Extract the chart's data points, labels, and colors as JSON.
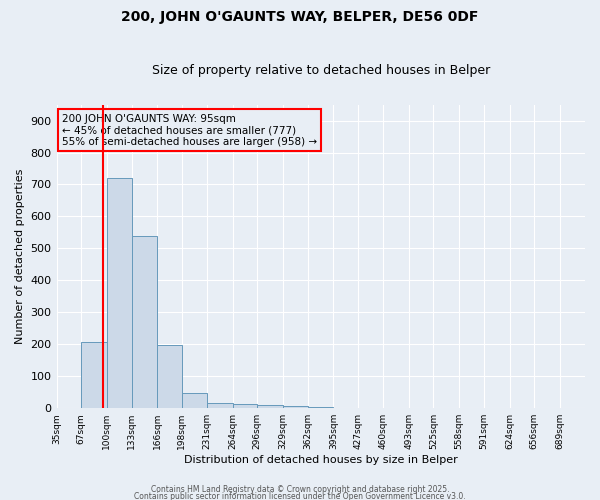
{
  "title1": "200, JOHN O'GAUNTS WAY, BELPER, DE56 0DF",
  "title2": "Size of property relative to detached houses in Belper",
  "xlabel": "Distribution of detached houses by size in Belper",
  "ylabel": "Number of detached properties",
  "bin_labels": [
    "35sqm",
    "67sqm",
    "100sqm",
    "133sqm",
    "166sqm",
    "198sqm",
    "231sqm",
    "264sqm",
    "296sqm",
    "329sqm",
    "362sqm",
    "395sqm",
    "427sqm",
    "460sqm",
    "493sqm",
    "525sqm",
    "558sqm",
    "591sqm",
    "624sqm",
    "656sqm",
    "689sqm"
  ],
  "bin_edges": [
    35,
    67,
    100,
    133,
    166,
    198,
    231,
    264,
    296,
    329,
    362,
    395,
    427,
    460,
    493,
    525,
    558,
    591,
    624,
    656,
    689,
    722
  ],
  "bar_heights": [
    0,
    207,
    720,
    540,
    197,
    48,
    17,
    12,
    10,
    8,
    5,
    0,
    0,
    0,
    0,
    0,
    0,
    0,
    0,
    0,
    0
  ],
  "bar_facecolor": "#ccd9e8",
  "bar_edgecolor": "#6699bb",
  "bg_color": "#e8eef5",
  "grid_color": "#ffffff",
  "red_line_x": 95,
  "annotation_text": "200 JOHN O'GAUNTS WAY: 95sqm\n← 45% of detached houses are smaller (777)\n55% of semi-detached houses are larger (958) →",
  "ylim": [
    0,
    950
  ],
  "yticks": [
    0,
    100,
    200,
    300,
    400,
    500,
    600,
    700,
    800,
    900
  ],
  "footnote1": "Contains HM Land Registry data © Crown copyright and database right 2025.",
  "footnote2": "Contains public sector information licensed under the Open Government Licence v3.0."
}
